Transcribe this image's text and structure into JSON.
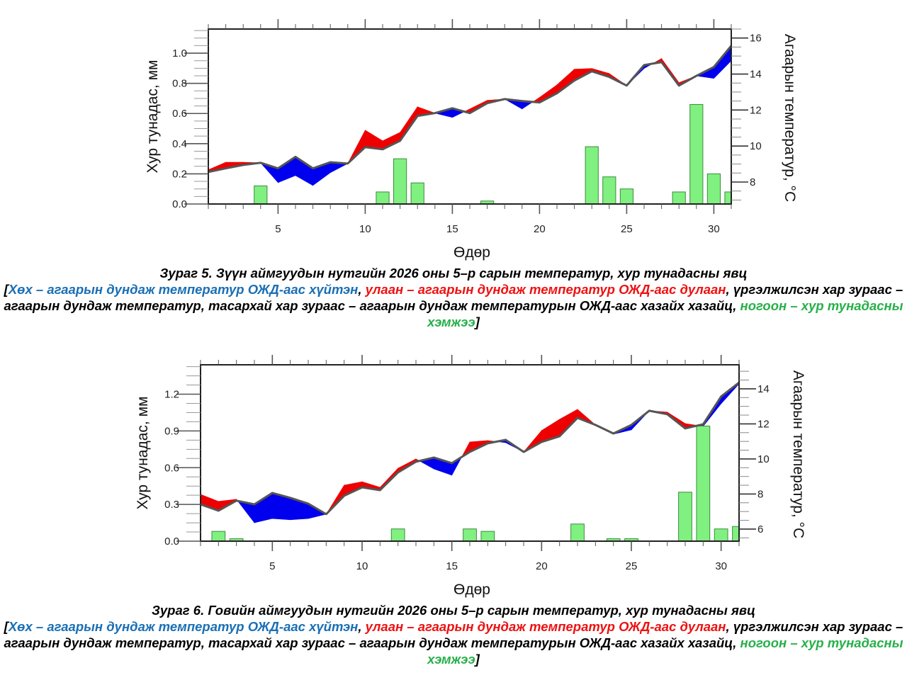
{
  "colors": {
    "cold": "#0000ee",
    "warm": "#ee0000",
    "precip": "#80f080",
    "precip_edge": "#3c8c3c",
    "temp_line": "#555555",
    "caption_blue": "#1a6fb5",
    "caption_red": "#ee1111",
    "caption_green": "#27b04a"
  },
  "chart_data": [
    {
      "type": "bar+line",
      "title": "",
      "xlabel": "Өдөр",
      "ylabel": "Хур тунадас, мм",
      "y2label": "Агаарын температур, °C",
      "xlim": [
        1,
        31
      ],
      "ylim": [
        0,
        1.16
      ],
      "y2lim": [
        6.78,
        16.5
      ],
      "x_ticks": [
        5,
        10,
        15,
        20,
        25,
        30
      ],
      "x_tick_labels": [
        "5",
        "10",
        "15",
        "20",
        "25",
        "30"
      ],
      "y_ticks": [
        0.0,
        0.2,
        0.4,
        0.6,
        0.8,
        1.0
      ],
      "y_tick_labels": [
        "0.0",
        "0.2",
        "0.4",
        "0.6",
        "0.8",
        "1.0"
      ],
      "y2_ticks": [
        8,
        10,
        12,
        14,
        16
      ],
      "y2_tick_labels": [
        "8",
        "10",
        "12",
        "14",
        "16"
      ],
      "days": [
        1,
        2,
        3,
        4,
        5,
        6,
        7,
        8,
        9,
        10,
        11,
        12,
        13,
        14,
        15,
        16,
        17,
        18,
        19,
        20,
        21,
        22,
        23,
        24,
        25,
        26,
        27,
        28,
        29,
        30,
        31
      ],
      "series": [
        {
          "name": "Агаарын дундаж температур",
          "axis": "right",
          "values": [
            8.56,
            8.76,
            8.95,
            9.07,
            8.76,
            9.4,
            8.76,
            9.1,
            9.03,
            9.94,
            9.82,
            10.29,
            11.67,
            11.83,
            12.1,
            11.83,
            12.38,
            12.61,
            12.5,
            12.42,
            12.93,
            13.64,
            14.15,
            13.84,
            13.36,
            14.5,
            14.66,
            13.36,
            13.9,
            14.39,
            15.57
          ]
        },
        {
          "name": "Агаарын дундаж температурын ОЖД",
          "axis": "right",
          "values": [
            8.68,
            9.1,
            9.1,
            9.07,
            7.97,
            8.36,
            7.81,
            8.52,
            9.03,
            10.88,
            10.29,
            10.76,
            12.18,
            11.83,
            11.59,
            12.06,
            12.54,
            12.61,
            12.06,
            12.7,
            13.4,
            14.27,
            14.31,
            14.03,
            13.36,
            14.31,
            14.86,
            13.52,
            13.9,
            13.76,
            14.74
          ]
        },
        {
          "name": "Хур тунадасны хэмжээ",
          "axis": "left",
          "type": "bar",
          "values": [
            0,
            0,
            0,
            0.12,
            0,
            0,
            0,
            0,
            0,
            0,
            0.08,
            0.3,
            0.14,
            0,
            0,
            0,
            0.02,
            0,
            0,
            0,
            0,
            0,
            0.38,
            0.18,
            0.1,
            0,
            0,
            0.08,
            0.66,
            0.2,
            0.08
          ]
        }
      ]
    },
    {
      "type": "bar+line",
      "title": "",
      "xlabel": "Өдөр",
      "ylabel": "Хур тунадас, мм",
      "y2label": "Агаарын температур, °C",
      "xlim": [
        1,
        31
      ],
      "ylim": [
        0,
        1.44
      ],
      "y2lim": [
        5.31,
        15.37
      ],
      "x_ticks": [
        5,
        10,
        15,
        20,
        25,
        30
      ],
      "x_tick_labels": [
        "5",
        "10",
        "15",
        "20",
        "25",
        "30"
      ],
      "y_ticks": [
        0.0,
        0.3,
        0.6,
        0.9,
        1.2
      ],
      "y_tick_labels": [
        "0.0",
        "0.3",
        "0.6",
        "0.9",
        "1.2"
      ],
      "y2_ticks": [
        6,
        8,
        10,
        12,
        14
      ],
      "y2_tick_labels": [
        "6",
        "8",
        "10",
        "12",
        "14"
      ],
      "days": [
        1,
        2,
        3,
        4,
        5,
        6,
        7,
        8,
        9,
        10,
        11,
        12,
        13,
        14,
        15,
        16,
        17,
        18,
        19,
        20,
        21,
        22,
        23,
        24,
        25,
        26,
        27,
        28,
        29,
        30,
        31
      ],
      "series": [
        {
          "name": "Агаарын дундаж температур",
          "axis": "right",
          "values": [
            7.41,
            7.05,
            7.62,
            7.41,
            8.06,
            7.78,
            7.45,
            6.85,
            7.9,
            8.38,
            8.22,
            9.23,
            9.84,
            10.08,
            9.76,
            10.4,
            10.89,
            11.09,
            10.4,
            10.97,
            11.29,
            12.34,
            11.94,
            11.45,
            11.94,
            12.75,
            12.55,
            11.74,
            11.98,
            13.56,
            14.36
          ]
        },
        {
          "name": "Агаарын дундаж температурын ОЖД",
          "axis": "right",
          "values": [
            7.98,
            7.58,
            7.7,
            6.36,
            6.6,
            6.53,
            6.6,
            6.85,
            8.5,
            8.7,
            8.38,
            9.47,
            10.0,
            9.43,
            9.07,
            10.97,
            11.05,
            10.93,
            10.4,
            11.62,
            12.26,
            12.83,
            11.94,
            11.41,
            11.66,
            12.75,
            12.67,
            12.02,
            11.86,
            13.15,
            14.28
          ]
        },
        {
          "name": "Хур тунадасны хэмжээ",
          "axis": "left",
          "type": "bar",
          "values": [
            0,
            0.08,
            0.02,
            0,
            0,
            0,
            0,
            0,
            0,
            0,
            0,
            0.1,
            0,
            0,
            0,
            0.1,
            0.08,
            0,
            0,
            0,
            0,
            0.14,
            0,
            0.02,
            0.02,
            0,
            0,
            0.4,
            0.94,
            0.1,
            0.12
          ]
        }
      ]
    }
  ],
  "captions": [
    {
      "title": "Зураг 5. Зүүн аймгуудын нутгийн 2026 оны 5–р сарын температур, хур тунадасны явц",
      "open_bracket": "[",
      "blue_text": "Хөх – агаарын дундаж температур ОЖД-аас хүйтэн",
      "sep1": ", ",
      "red_text": "улаан – агаарын дундаж температур ОЖД-аас дулаан",
      "sep2": ",",
      "black_text": "үргэлжилсэн хар зураас – агаарын дундаж температур, тасархай хар зураас – агаарын дундаж температурын ОЖД-аас хазайх хазайц",
      "sep3": ", ",
      "green_text": "ногоон – хур тунадасны хэмжээ",
      "close_bracket": "]"
    },
    {
      "title": "Зураг 6. Говийн аймгуудын нутгийн 2026 оны 5–р сарын температур, хур тунадасны явц",
      "open_bracket": "[",
      "blue_text": "Хөх – агаарын дундаж температур ОЖД-аас хүйтэн",
      "sep1": ", ",
      "red_text": "улаан – агаарын дундаж температур ОЖД-аас дулаан",
      "sep2": ",",
      "black_text": "үргэлжилсэн хар зураас – агаарын дундаж температур, тасархай хар зураас – агаарын дундаж температурын ОЖД-аас хазайх хазайц",
      "sep3": ", ",
      "green_text": "ногоон – хур тунадасны хэмжээ",
      "close_bracket": "]"
    }
  ]
}
